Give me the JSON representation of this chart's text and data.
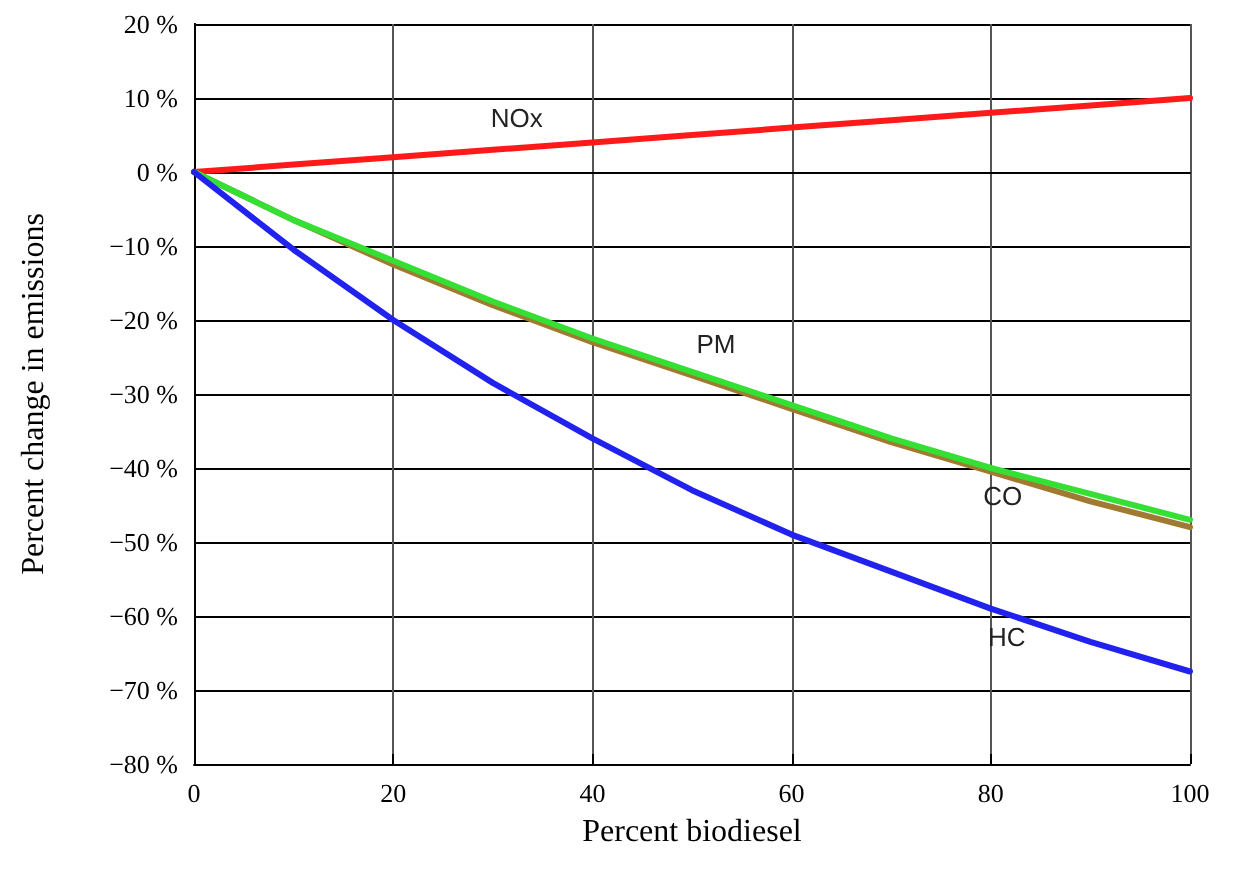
{
  "chart_data": {
    "type": "line",
    "xlabel": "Percent biodiesel",
    "ylabel": "Percent change in emissions",
    "x": [
      0,
      10,
      20,
      30,
      40,
      50,
      60,
      70,
      80,
      90,
      100
    ],
    "series": [
      {
        "name": "NOx",
        "color": "#ff1a1a",
        "values": [
          0,
          1,
          2,
          3,
          4,
          5,
          6,
          7,
          8,
          9,
          10
        ]
      },
      {
        "name": "CO",
        "color": "#a07a30",
        "values": [
          0,
          -6.5,
          -12.5,
          -18,
          -23,
          -27.5,
          -32,
          -36.5,
          -40.5,
          -44.5,
          -48
        ]
      },
      {
        "name": "PM",
        "color": "#33e033",
        "values": [
          0,
          -6.5,
          -12,
          -17.5,
          -22.5,
          -27,
          -31.5,
          -36,
          -40,
          -43.5,
          -47
        ]
      },
      {
        "name": "HC",
        "color": "#2222ee",
        "values": [
          0,
          -10.5,
          -20,
          -28.5,
          -36,
          -43,
          -49,
          -54,
          -59,
          -63.5,
          -67.5
        ]
      }
    ],
    "xlim": [
      0,
      100
    ],
    "xticks": [
      0,
      20,
      40,
      60,
      80,
      100
    ],
    "ylim": [
      -80,
      20
    ],
    "yticks": [
      {
        "value": 20,
        "label": "20 %"
      },
      {
        "value": 10,
        "label": "10 %"
      },
      {
        "value": 0,
        "label": "0 %"
      },
      {
        "value": -10,
        "label": "−10 %"
      },
      {
        "value": -20,
        "label": "−20 %"
      },
      {
        "value": -30,
        "label": "−30 %"
      },
      {
        "value": -40,
        "label": "−40 %"
      },
      {
        "value": -50,
        "label": "−50 %"
      },
      {
        "value": -60,
        "label": "−60 %"
      },
      {
        "value": -70,
        "label": "−70 %"
      },
      {
        "value": -80,
        "label": "−80 %"
      }
    ],
    "grid": true,
    "marker": "none",
    "line_style": "solid"
  }
}
